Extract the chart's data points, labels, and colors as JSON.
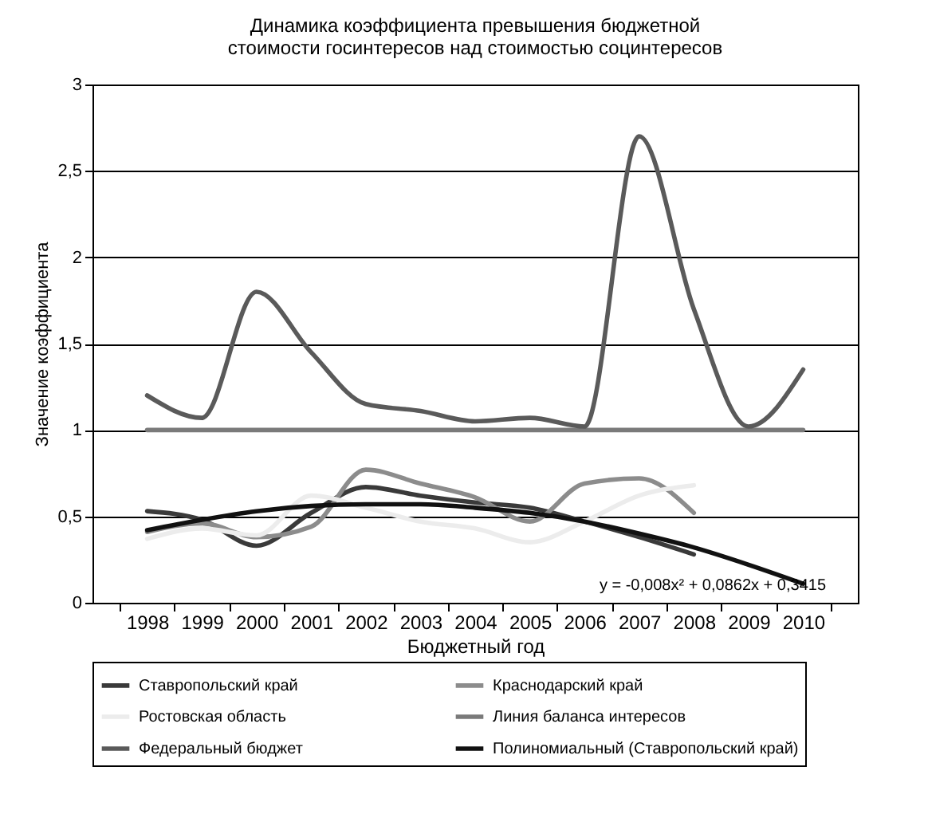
{
  "chart_data": {
    "type": "line",
    "title": "Динамика коэффициента превышения бюджетной стоимости госинтересов над стоимостью социнтересов",
    "xlabel": "Бюджетный год",
    "ylabel": "Значение коэффициента",
    "categories": [
      "1998",
      "1999",
      "2000",
      "2001",
      "2002",
      "2003",
      "2004",
      "2005",
      "2006",
      "2007",
      "2008",
      "2009",
      "2010"
    ],
    "series": [
      {
        "name": "Ставропольский край",
        "color": "#3a3a3a",
        "values": [
          0.53,
          0.48,
          0.33,
          0.52,
          0.67,
          0.62,
          0.58,
          0.55,
          0.47,
          0.38,
          0.28,
          null,
          null
        ]
      },
      {
        "name": "Краснодарский край",
        "color": "#8c8c8c",
        "values": [
          0.41,
          0.46,
          0.38,
          0.44,
          0.77,
          0.69,
          0.61,
          0.47,
          0.69,
          0.72,
          0.52,
          null,
          null
        ]
      },
      {
        "name": "Ростовская область",
        "color": "#ececec",
        "values": [
          0.37,
          0.43,
          0.39,
          0.62,
          0.55,
          0.47,
          0.43,
          0.35,
          0.47,
          0.62,
          0.68,
          null,
          null
        ]
      },
      {
        "name": "Линия баланса интересов",
        "color": "#7a7a7a",
        "values": [
          1,
          1,
          1,
          1,
          1,
          1,
          1,
          1,
          1,
          1,
          1,
          1,
          1
        ]
      },
      {
        "name": "Федеральный бюджет",
        "color": "#5a5a5a",
        "values": [
          1.2,
          1.07,
          1.8,
          1.45,
          1.15,
          1.11,
          1.05,
          1.07,
          1.02,
          2.7,
          1.7,
          1.02,
          1.35
        ]
      },
      {
        "name": "Полиномиальный (Ставропольский край)",
        "color": "#111111",
        "values": [
          0.42,
          0.48,
          0.53,
          0.56,
          0.57,
          0.57,
          0.55,
          0.52,
          0.47,
          0.4,
          0.32,
          0.22,
          0.11
        ]
      }
    ],
    "ylim": [
      0,
      3
    ],
    "yticks": [
      0,
      {
        "value": 0.5,
        "label": "0,5"
      },
      1,
      {
        "value": 1.5,
        "label": "1,5"
      },
      2,
      {
        "value": 2.5,
        "label": "2,5"
      },
      3
    ],
    "grid": "y",
    "legend": "bottom",
    "annotations": [
      "y = -0,008x² + 0,0862x + 0,3415"
    ]
  }
}
